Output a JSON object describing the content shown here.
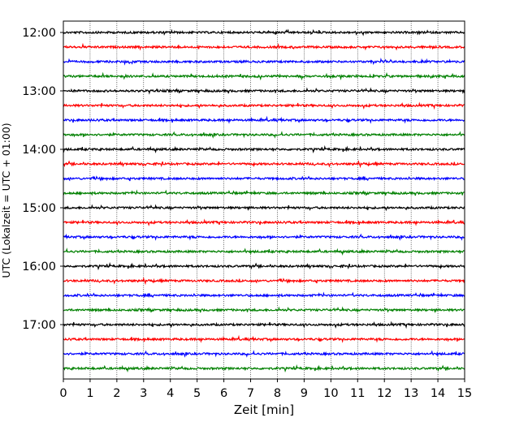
{
  "chart_data": {
    "type": "line",
    "title": "",
    "xlabel": "Zeit  [min]",
    "ylabel": "UTC (Lokalzeit = UTC + 01:00)",
    "xlim": [
      0,
      15
    ],
    "x_ticks": [
      "0",
      "1",
      "2",
      "3",
      "4",
      "5",
      "6",
      "7",
      "8",
      "9",
      "10",
      "11",
      "12",
      "13",
      "14",
      "15"
    ],
    "y_ticks": [
      "12:00",
      "13:00",
      "14:00",
      "15:00",
      "16:00",
      "17:00"
    ],
    "grid": "vertical dotted",
    "trace_colors": [
      "#000000",
      "#ff0000",
      "#0000ff",
      "#008000"
    ],
    "rows": [
      {
        "start": "12:00",
        "color": "#000000"
      },
      {
        "start": "12:15",
        "color": "#ff0000"
      },
      {
        "start": "12:30",
        "color": "#0000ff"
      },
      {
        "start": "12:45",
        "color": "#008000"
      },
      {
        "start": "13:00",
        "color": "#000000"
      },
      {
        "start": "13:15",
        "color": "#ff0000"
      },
      {
        "start": "13:30",
        "color": "#0000ff"
      },
      {
        "start": "13:45",
        "color": "#008000"
      },
      {
        "start": "14:00",
        "color": "#000000"
      },
      {
        "start": "14:15",
        "color": "#ff0000"
      },
      {
        "start": "14:30",
        "color": "#0000ff"
      },
      {
        "start": "14:45",
        "color": "#008000"
      },
      {
        "start": "15:00",
        "color": "#000000"
      },
      {
        "start": "15:15",
        "color": "#ff0000"
      },
      {
        "start": "15:30",
        "color": "#0000ff"
      },
      {
        "start": "15:45",
        "color": "#008000"
      },
      {
        "start": "16:00",
        "color": "#000000"
      },
      {
        "start": "16:15",
        "color": "#ff0000"
      },
      {
        "start": "16:30",
        "color": "#0000ff"
      },
      {
        "start": "16:45",
        "color": "#008000"
      },
      {
        "start": "17:00",
        "color": "#000000"
      },
      {
        "start": "17:15",
        "color": "#ff0000"
      },
      {
        "start": "17:30",
        "color": "#0000ff"
      },
      {
        "start": "17:45",
        "color": "#008000"
      }
    ]
  }
}
